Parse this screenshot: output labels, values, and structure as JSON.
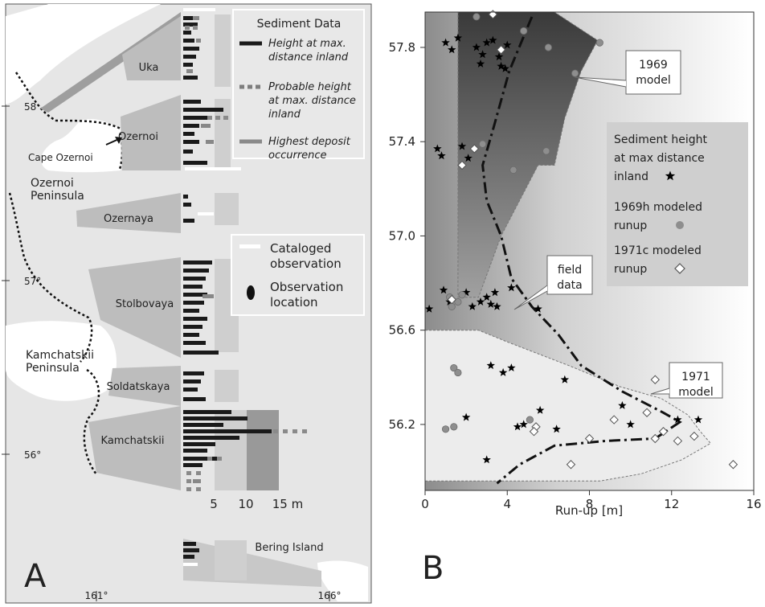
{
  "panelA": {
    "panel_label": "A",
    "legend_sediment": {
      "title": "Sediment Data",
      "items": [
        {
          "lines": [
            "Height at max.",
            "distance inland"
          ],
          "color": "#1a1a1a",
          "style": "solid"
        },
        {
          "lines": [
            "Probable height",
            "at max. distance",
            "inland"
          ],
          "color": "#7d7d7d",
          "style": "dashed"
        },
        {
          "lines": [
            "Highest deposit",
            "occurrence"
          ],
          "color": "#8a8a8a",
          "style": "solid"
        }
      ]
    },
    "legend_obs": {
      "items": [
        {
          "lines": [
            "Cataloged",
            "observation"
          ],
          "symbol": "white-bar"
        },
        {
          "lines": [
            "Observation",
            "location"
          ],
          "symbol": "black-ellipse"
        }
      ]
    },
    "region_labels": [
      "Uka",
      "Ozernoi",
      "Ozernaya",
      "Stolbovaya",
      "Soldatskaya",
      "Kamchatskii",
      "Bering Island"
    ],
    "place_labels": {
      "cape": "Cape Ozernoi",
      "ozernoi_pen": [
        "Ozernoi",
        "Peninsula"
      ],
      "kamch_pen": [
        "Kamchatskii",
        "Peninsula"
      ]
    },
    "lat_ticks": [
      "58",
      "57°",
      "56°"
    ],
    "lon_ticks": [
      "161°",
      "166°"
    ],
    "scale_labels": [
      "5",
      "10",
      "15 m"
    ]
  },
  "chart_data": {
    "type": "scatter",
    "panel_label": "B",
    "xlabel": "Run-up [m]",
    "ylabel": "",
    "xlim": [
      0,
      16
    ],
    "ylim": [
      55.92,
      57.95
    ],
    "x_ticks": [
      0,
      4,
      8,
      12,
      16
    ],
    "y_ticks": [
      56.2,
      56.6,
      57.0,
      57.4,
      57.8
    ],
    "grid": false,
    "legend_position": "right",
    "legend": [
      {
        "lines": [
          "Sediment height",
          "at max distance",
          "inland"
        ],
        "marker": "★"
      },
      {
        "lines": [
          "1969h modeled",
          "runup"
        ],
        "marker": "●"
      },
      {
        "lines": [
          "1971c modeled",
          "runup"
        ],
        "marker": "◇"
      }
    ],
    "annotations": [
      {
        "lines": [
          "1969",
          "model"
        ]
      },
      {
        "lines": [
          "field",
          "data"
        ]
      },
      {
        "lines": [
          "1971",
          "model"
        ]
      }
    ],
    "series": [
      {
        "name": "Sediment height at max distance inland",
        "marker": "star",
        "points": [
          [
            1.0,
            57.82
          ],
          [
            1.3,
            57.79
          ],
          [
            1.6,
            57.84
          ],
          [
            2.5,
            57.8
          ],
          [
            2.8,
            57.77
          ],
          [
            3.0,
            57.82
          ],
          [
            3.3,
            57.83
          ],
          [
            3.6,
            57.76
          ],
          [
            4.0,
            57.81
          ],
          [
            2.7,
            57.73
          ],
          [
            3.7,
            57.72
          ],
          [
            3.9,
            57.71
          ],
          [
            0.6,
            57.37
          ],
          [
            0.8,
            57.34
          ],
          [
            1.8,
            57.38
          ],
          [
            2.1,
            57.33
          ],
          [
            0.2,
            56.69
          ],
          [
            0.9,
            56.77
          ],
          [
            1.2,
            56.72
          ],
          [
            2.0,
            56.76
          ],
          [
            2.3,
            56.7
          ],
          [
            2.7,
            56.72
          ],
          [
            3.0,
            56.74
          ],
          [
            3.2,
            56.71
          ],
          [
            3.4,
            56.76
          ],
          [
            3.5,
            56.7
          ],
          [
            4.2,
            56.78
          ],
          [
            5.5,
            56.69
          ],
          [
            3.2,
            56.45
          ],
          [
            3.8,
            56.42
          ],
          [
            4.2,
            56.44
          ],
          [
            6.8,
            56.39
          ],
          [
            2.0,
            56.23
          ],
          [
            4.8,
            56.2
          ],
          [
            5.6,
            56.26
          ],
          [
            4.5,
            56.19
          ],
          [
            9.6,
            56.28
          ],
          [
            10.0,
            56.2
          ],
          [
            12.3,
            56.22
          ],
          [
            13.3,
            56.22
          ],
          [
            6.4,
            56.18
          ],
          [
            3.0,
            56.05
          ]
        ]
      },
      {
        "name": "1969h modeled runup",
        "marker": "circle",
        "points": [
          [
            2.5,
            57.93
          ],
          [
            4.8,
            57.87
          ],
          [
            6.0,
            57.8
          ],
          [
            8.5,
            57.82
          ],
          [
            7.3,
            57.69
          ],
          [
            2.8,
            57.39
          ],
          [
            5.9,
            57.36
          ],
          [
            4.3,
            57.28
          ],
          [
            1.2,
            56.74
          ],
          [
            1.3,
            56.7
          ],
          [
            1.6,
            56.72
          ],
          [
            1.8,
            56.75
          ],
          [
            1.4,
            56.44
          ],
          [
            1.6,
            56.42
          ],
          [
            1.0,
            56.18
          ],
          [
            1.4,
            56.19
          ],
          [
            5.1,
            56.22
          ]
        ]
      },
      {
        "name": "1971c modeled runup",
        "marker": "diamond",
        "points": [
          [
            3.3,
            57.94
          ],
          [
            3.7,
            57.79
          ],
          [
            2.4,
            57.37
          ],
          [
            1.8,
            57.3
          ],
          [
            1.3,
            56.73
          ],
          [
            11.2,
            56.39
          ],
          [
            10.8,
            56.25
          ],
          [
            9.2,
            56.22
          ],
          [
            11.6,
            56.17
          ],
          [
            5.4,
            56.19
          ],
          [
            5.3,
            56.17
          ],
          [
            8.0,
            56.14
          ],
          [
            12.3,
            56.13
          ],
          [
            13.1,
            56.15
          ],
          [
            11.2,
            56.14
          ],
          [
            7.1,
            56.03
          ],
          [
            15.0,
            56.03
          ]
        ]
      }
    ],
    "model_1969_envelope": [
      [
        0,
        57.95
      ],
      [
        6.3,
        57.95
      ],
      [
        8.4,
        57.83
      ],
      [
        7.6,
        57.7
      ],
      [
        6.8,
        57.5
      ],
      [
        6.3,
        57.3
      ],
      [
        5.5,
        57.3
      ],
      [
        3.7,
        57.0
      ],
      [
        2.6,
        56.74
      ],
      [
        1.6,
        56.74
      ],
      [
        1.6,
        57.95
      ]
    ],
    "model_1971_envelope": [
      [
        0,
        56.6
      ],
      [
        2.6,
        56.6
      ],
      [
        4.0,
        56.55
      ],
      [
        5.5,
        56.5
      ],
      [
        7.0,
        56.45
      ],
      [
        9.5,
        56.36
      ],
      [
        11.5,
        56.31
      ],
      [
        12.8,
        56.24
      ],
      [
        13.4,
        56.17
      ],
      [
        13.9,
        56.12
      ],
      [
        12.5,
        56.05
      ],
      [
        10.5,
        55.99
      ],
      [
        8.5,
        55.96
      ],
      [
        1.4,
        55.96
      ],
      [
        0,
        55.96
      ]
    ],
    "mean_line": [
      [
        5.2,
        57.93
      ],
      [
        4.1,
        57.7
      ],
      [
        3.3,
        57.45
      ],
      [
        2.8,
        57.3
      ],
      [
        3.0,
        57.15
      ],
      [
        3.7,
        57.0
      ],
      [
        4.2,
        56.82
      ],
      [
        5.2,
        56.7
      ],
      [
        6.5,
        56.58
      ],
      [
        7.6,
        56.45
      ],
      [
        9.6,
        56.34
      ],
      [
        11.6,
        56.25
      ],
      [
        12.4,
        56.21
      ],
      [
        11.2,
        56.14
      ],
      [
        8.8,
        56.13
      ],
      [
        6.3,
        56.11
      ],
      [
        4.6,
        56.03
      ],
      [
        3.5,
        55.95
      ]
    ]
  }
}
